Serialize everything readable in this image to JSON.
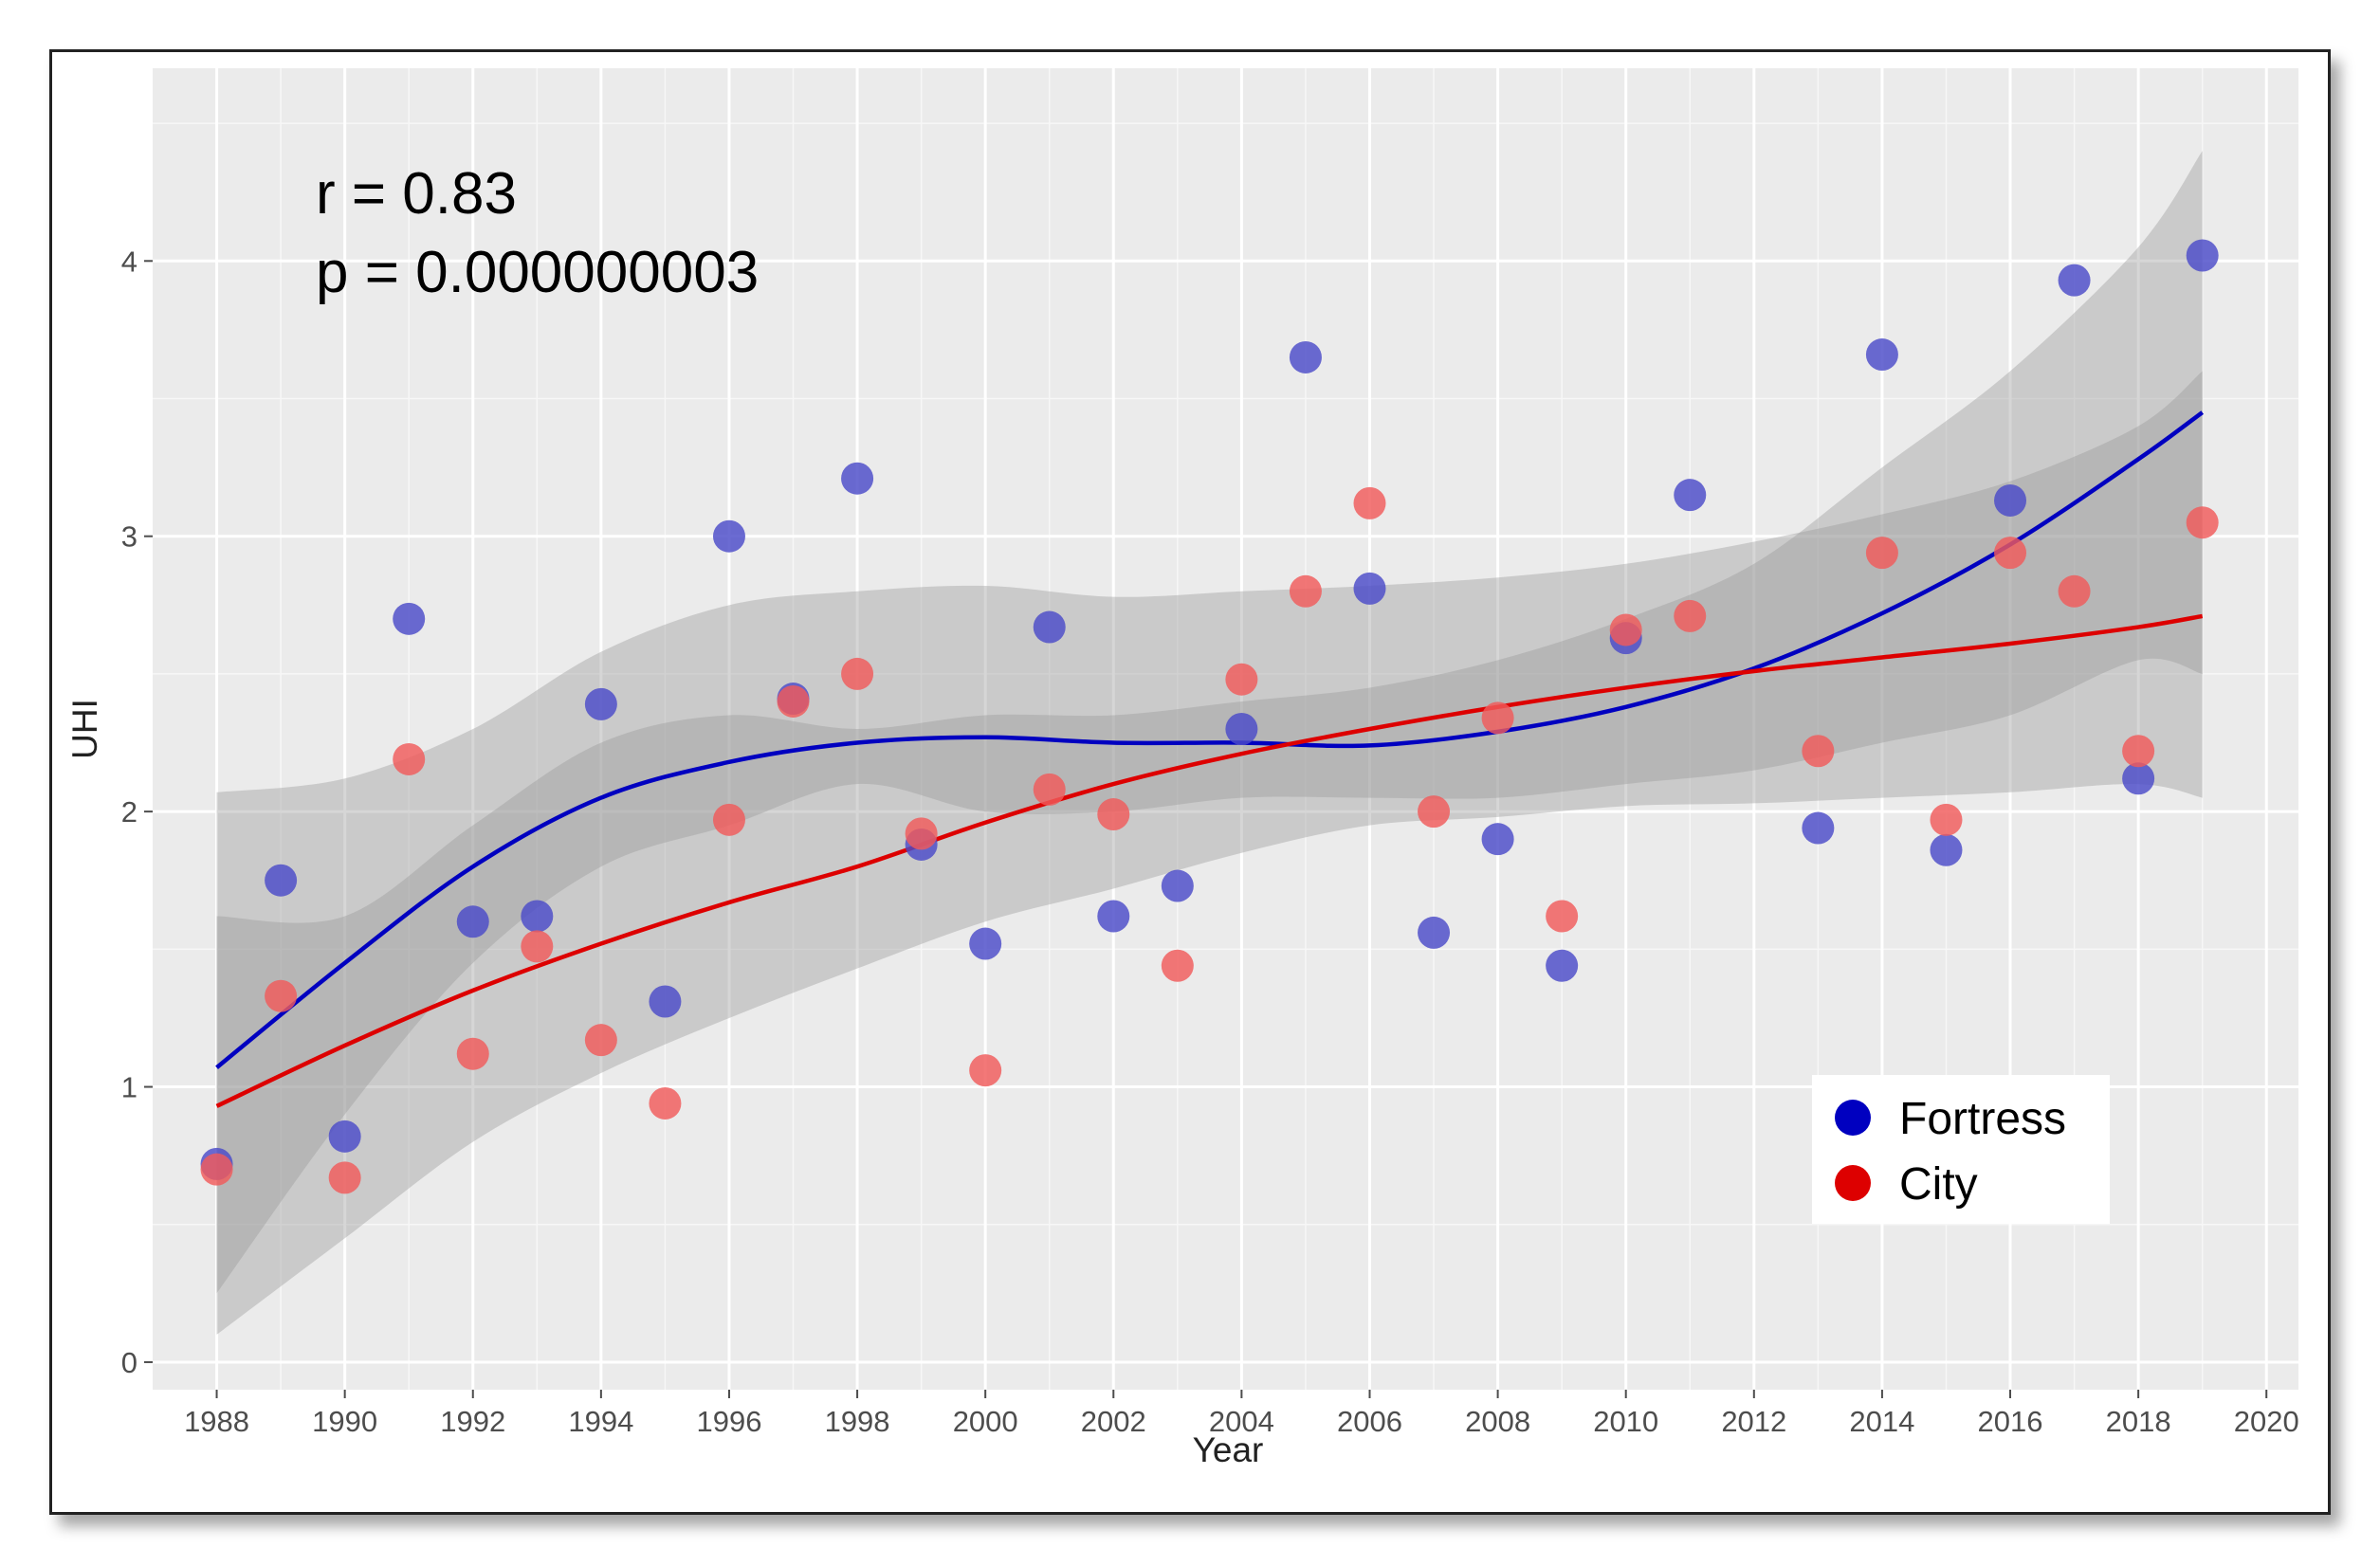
{
  "chart_data": {
    "type": "scatter",
    "xlabel": "Year",
    "ylabel": "UHI",
    "xlim": [
      1987,
      2020.5
    ],
    "ylim": [
      -0.1,
      4.7
    ],
    "x_ticks": [
      "1988",
      "1990",
      "1992",
      "1994",
      "1996",
      "1998",
      "2000",
      "2002",
      "2004",
      "2006",
      "2008",
      "2010",
      "2012",
      "2014",
      "2016",
      "2018",
      "2020"
    ],
    "y_ticks": [
      "0",
      "1",
      "2",
      "3",
      "4"
    ],
    "grid": true,
    "annotations": [
      "r = 0.83",
      "p = 0.000000003"
    ],
    "legend_position": "bottom-right",
    "series": [
      {
        "name": "Fortress",
        "color": "#0000c0",
        "marker_color": "#4b4bc8",
        "points": [
          [
            1988,
            0.72
          ],
          [
            1989,
            1.75
          ],
          [
            1990,
            0.82
          ],
          [
            1991,
            2.7
          ],
          [
            1992,
            1.6
          ],
          [
            1993,
            1.62
          ],
          [
            1994,
            2.39
          ],
          [
            1995,
            1.31
          ],
          [
            1996,
            3.0
          ],
          [
            1997,
            2.41
          ],
          [
            1998,
            3.21
          ],
          [
            1999,
            1.88
          ],
          [
            2000,
            1.52
          ],
          [
            2001,
            2.67
          ],
          [
            2002,
            1.62
          ],
          [
            2003,
            1.73
          ],
          [
            2004,
            2.3
          ],
          [
            2005,
            3.65
          ],
          [
            2006,
            2.81
          ],
          [
            2007,
            1.56
          ],
          [
            2008,
            1.9
          ],
          [
            2009,
            1.44
          ],
          [
            2010,
            2.63
          ],
          [
            2011,
            3.15
          ],
          [
            2013,
            1.94
          ],
          [
            2014,
            3.66
          ],
          [
            2015,
            1.86
          ],
          [
            2016,
            3.13
          ],
          [
            2017,
            3.93
          ],
          [
            2018,
            2.12
          ],
          [
            2019,
            4.02
          ]
        ],
        "smooth": [
          [
            1988,
            1.07
          ],
          [
            1990,
            1.45
          ],
          [
            1992,
            1.8
          ],
          [
            1994,
            2.05
          ],
          [
            1996,
            2.18
          ],
          [
            1998,
            2.25
          ],
          [
            2000,
            2.27
          ],
          [
            2002,
            2.25
          ],
          [
            2004,
            2.25
          ],
          [
            2006,
            2.24
          ],
          [
            2008,
            2.29
          ],
          [
            2010,
            2.38
          ],
          [
            2012,
            2.52
          ],
          [
            2014,
            2.72
          ],
          [
            2016,
            2.97
          ],
          [
            2018,
            3.28
          ],
          [
            2019,
            3.45
          ]
        ],
        "band_upper": [
          [
            1988,
            1.62
          ],
          [
            1990,
            1.62
          ],
          [
            1992,
            1.95
          ],
          [
            1994,
            2.25
          ],
          [
            1996,
            2.35
          ],
          [
            1998,
            2.3
          ],
          [
            2000,
            2.35
          ],
          [
            2002,
            2.35
          ],
          [
            2004,
            2.4
          ],
          [
            2006,
            2.45
          ],
          [
            2008,
            2.55
          ],
          [
            2010,
            2.7
          ],
          [
            2012,
            2.9
          ],
          [
            2014,
            3.25
          ],
          [
            2016,
            3.6
          ],
          [
            2018,
            4.05
          ],
          [
            2019,
            4.4
          ]
        ],
        "band_lower": [
          [
            1988,
            0.25
          ],
          [
            1990,
            0.9
          ],
          [
            1992,
            1.45
          ],
          [
            1994,
            1.8
          ],
          [
            1996,
            1.95
          ],
          [
            1998,
            2.1
          ],
          [
            2000,
            2.0
          ],
          [
            2002,
            2.0
          ],
          [
            2004,
            2.05
          ],
          [
            2006,
            2.05
          ],
          [
            2008,
            2.05
          ],
          [
            2010,
            2.1
          ],
          [
            2012,
            2.15
          ],
          [
            2014,
            2.25
          ],
          [
            2016,
            2.35
          ],
          [
            2018,
            2.55
          ],
          [
            2019,
            2.5
          ]
        ]
      },
      {
        "name": "City",
        "color": "#dd0000",
        "marker_color": "#f05a5a",
        "points": [
          [
            1988,
            0.7
          ],
          [
            1989,
            1.33
          ],
          [
            1990,
            0.67
          ],
          [
            1991,
            2.19
          ],
          [
            1992,
            1.12
          ],
          [
            1993,
            1.51
          ],
          [
            1994,
            1.17
          ],
          [
            1995,
            0.94
          ],
          [
            1996,
            1.97
          ],
          [
            1997,
            2.4
          ],
          [
            1998,
            2.5
          ],
          [
            1999,
            1.92
          ],
          [
            2000,
            1.06
          ],
          [
            2001,
            2.08
          ],
          [
            2002,
            1.99
          ],
          [
            2003,
            1.44
          ],
          [
            2004,
            2.48
          ],
          [
            2005,
            2.8
          ],
          [
            2006,
            3.12
          ],
          [
            2007,
            2.0
          ],
          [
            2008,
            2.34
          ],
          [
            2009,
            1.62
          ],
          [
            2010,
            2.66
          ],
          [
            2011,
            2.71
          ],
          [
            2013,
            2.22
          ],
          [
            2014,
            2.94
          ],
          [
            2015,
            1.97
          ],
          [
            2016,
            2.94
          ],
          [
            2017,
            2.8
          ],
          [
            2018,
            2.22
          ],
          [
            2019,
            3.05
          ]
        ],
        "smooth": [
          [
            1988,
            0.93
          ],
          [
            1990,
            1.15
          ],
          [
            1992,
            1.35
          ],
          [
            1994,
            1.52
          ],
          [
            1996,
            1.67
          ],
          [
            1998,
            1.8
          ],
          [
            2000,
            1.96
          ],
          [
            2002,
            2.1
          ],
          [
            2004,
            2.21
          ],
          [
            2006,
            2.3
          ],
          [
            2008,
            2.38
          ],
          [
            2010,
            2.45
          ],
          [
            2012,
            2.51
          ],
          [
            2014,
            2.56
          ],
          [
            2016,
            2.61
          ],
          [
            2018,
            2.67
          ],
          [
            2019,
            2.71
          ]
        ],
        "band_upper": [
          [
            1988,
            2.07
          ],
          [
            1990,
            2.12
          ],
          [
            1992,
            2.3
          ],
          [
            1994,
            2.58
          ],
          [
            1996,
            2.75
          ],
          [
            1998,
            2.8
          ],
          [
            2000,
            2.82
          ],
          [
            2002,
            2.78
          ],
          [
            2004,
            2.8
          ],
          [
            2006,
            2.82
          ],
          [
            2008,
            2.85
          ],
          [
            2010,
            2.9
          ],
          [
            2012,
            2.98
          ],
          [
            2014,
            3.08
          ],
          [
            2016,
            3.2
          ],
          [
            2018,
            3.4
          ],
          [
            2019,
            3.6
          ]
        ],
        "band_lower": [
          [
            1988,
            0.1
          ],
          [
            1990,
            0.45
          ],
          [
            1992,
            0.8
          ],
          [
            1994,
            1.05
          ],
          [
            1996,
            1.25
          ],
          [
            1998,
            1.43
          ],
          [
            2000,
            1.6
          ],
          [
            2002,
            1.72
          ],
          [
            2004,
            1.85
          ],
          [
            2006,
            1.95
          ],
          [
            2008,
            1.98
          ],
          [
            2010,
            2.02
          ],
          [
            2012,
            2.03
          ],
          [
            2014,
            2.05
          ],
          [
            2016,
            2.07
          ],
          [
            2018,
            2.1
          ],
          [
            2019,
            2.05
          ]
        ]
      }
    ]
  }
}
